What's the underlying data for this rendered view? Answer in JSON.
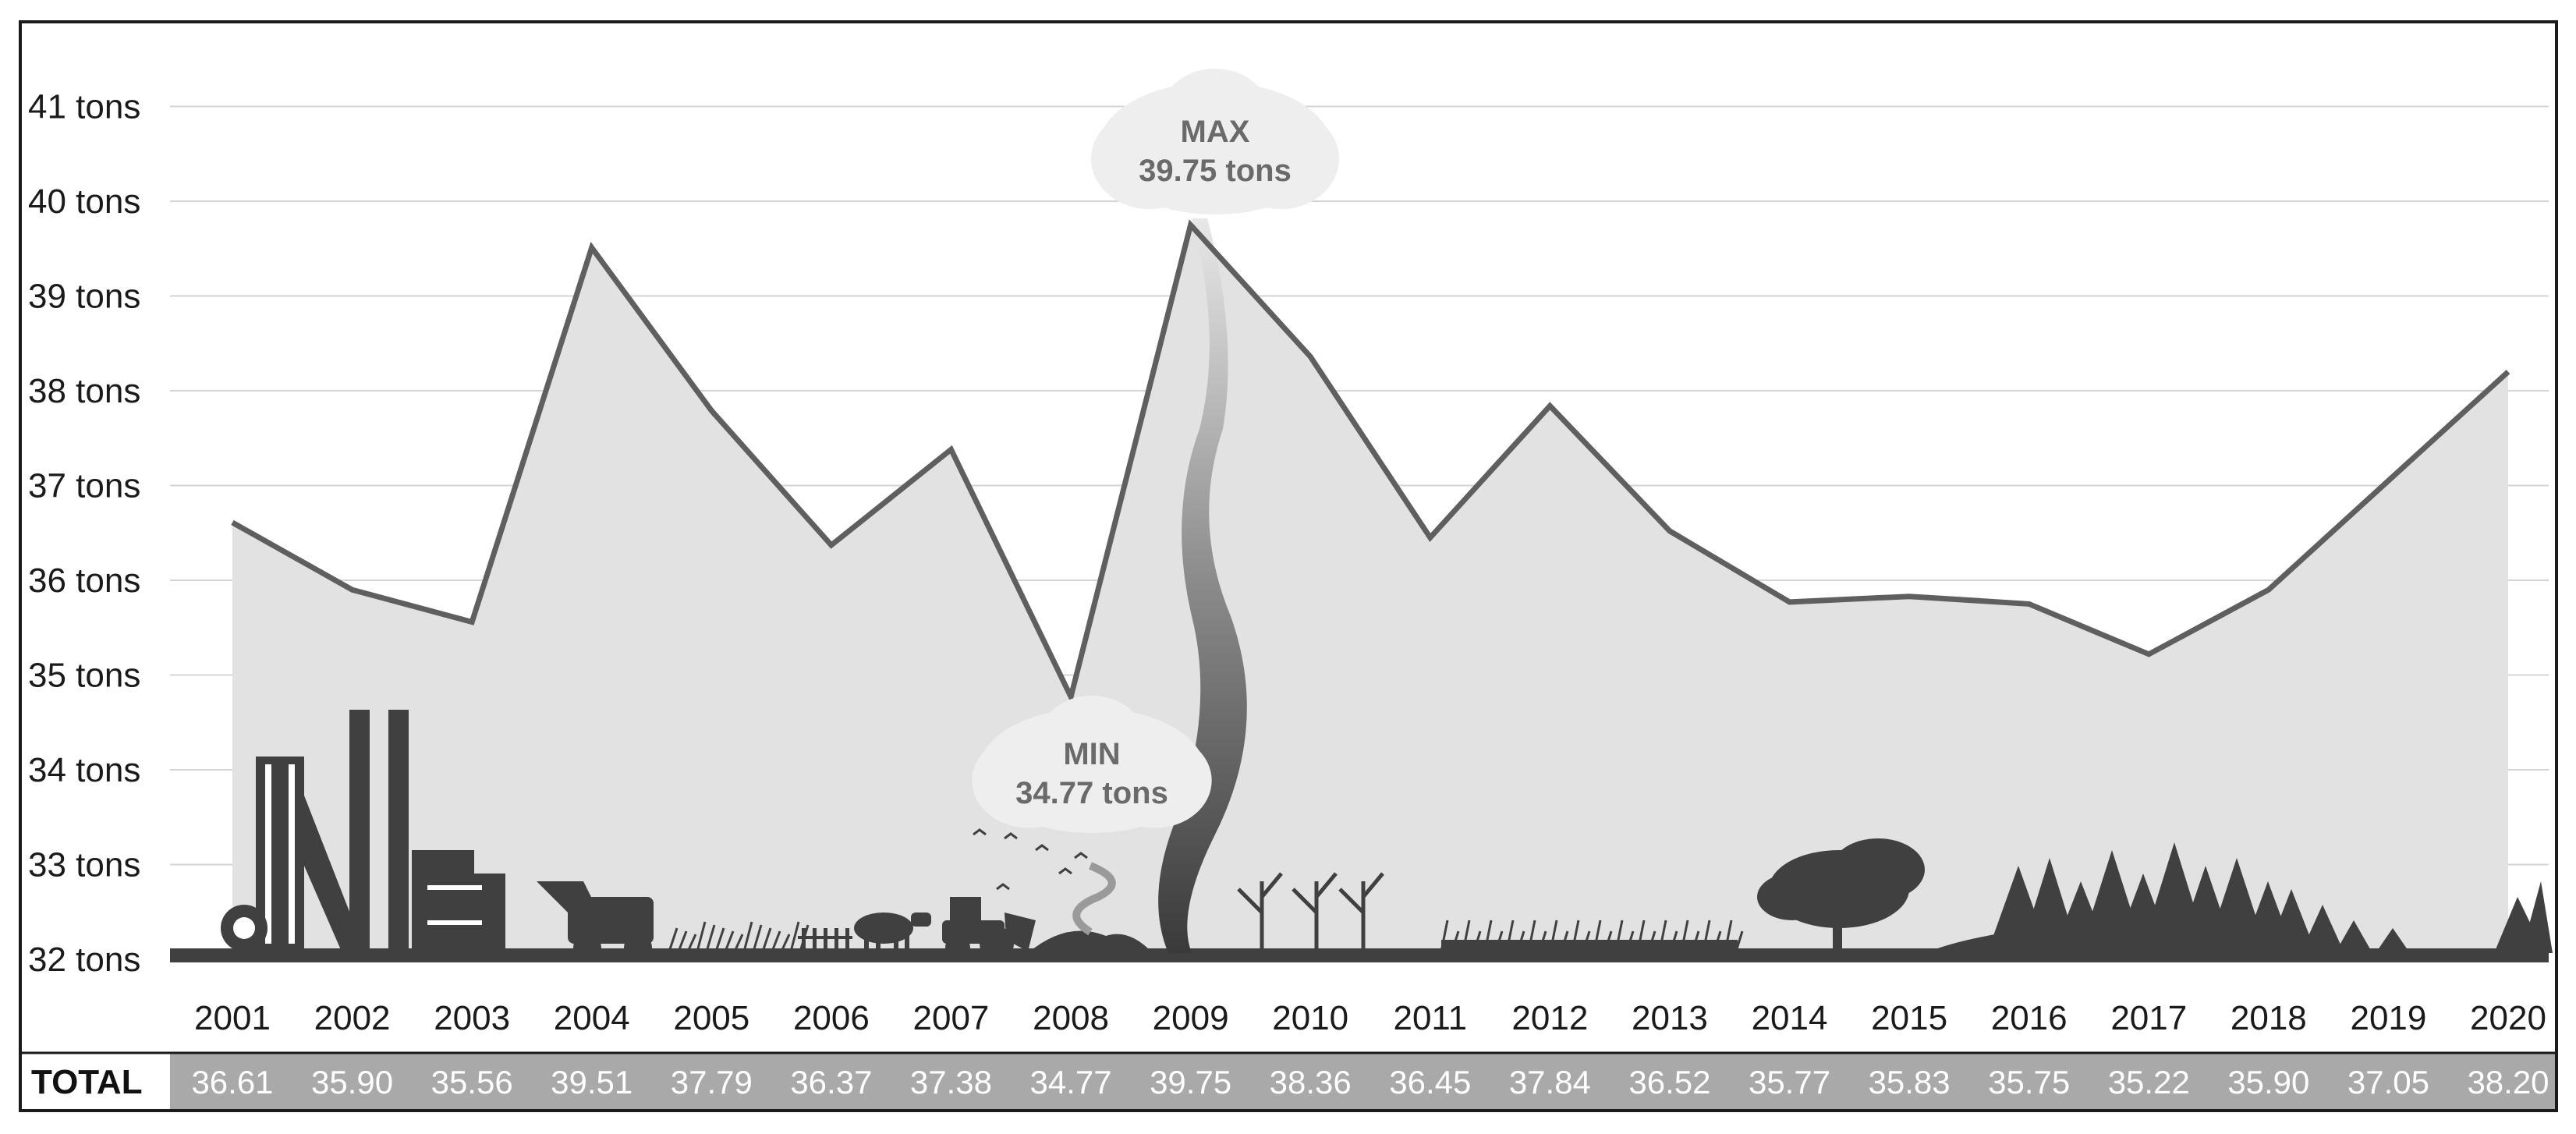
{
  "chart_data": {
    "type": "area",
    "x": [
      "2001",
      "2002",
      "2003",
      "2004",
      "2005",
      "2006",
      "2007",
      "2008",
      "2009",
      "2010",
      "2011",
      "2012",
      "2013",
      "2014",
      "2015",
      "2016",
      "2017",
      "2018",
      "2019",
      "2020"
    ],
    "values": [
      36.61,
      35.9,
      35.56,
      39.51,
      37.79,
      36.37,
      37.38,
      34.77,
      39.75,
      38.36,
      36.45,
      37.84,
      36.52,
      35.77,
      35.83,
      35.75,
      35.22,
      35.9,
      37.05,
      38.2
    ],
    "yticks": [
      "32 tons",
      "33 tons",
      "34 tons",
      "35 tons",
      "36 tons",
      "37 tons",
      "38 tons",
      "39 tons",
      "40 tons",
      "41 tons"
    ],
    "ylim": [
      32,
      41.5
    ],
    "grid": true,
    "colors": {
      "line": "#5f5f5f",
      "area": "#e2e2e2",
      "silhouette": "#404040",
      "total_bar": "#a9a9a9"
    },
    "annotations": {
      "max": {
        "label": "MAX",
        "value_text": "39.75 tons",
        "year": "2009"
      },
      "min": {
        "label": "MIN",
        "value_text": "34.77 tons",
        "year": "2008"
      }
    },
    "totals": {
      "label": "TOTAL",
      "values": [
        "36.61",
        "35.90",
        "35.56",
        "39.51",
        "37.79",
        "36.37",
        "37.38",
        "34.77",
        "39.75",
        "38.36",
        "36.45",
        "37.84",
        "36.52",
        "35.77",
        "35.83",
        "35.75",
        "35.22",
        "35.90",
        "37.05",
        "38.20"
      ]
    }
  }
}
